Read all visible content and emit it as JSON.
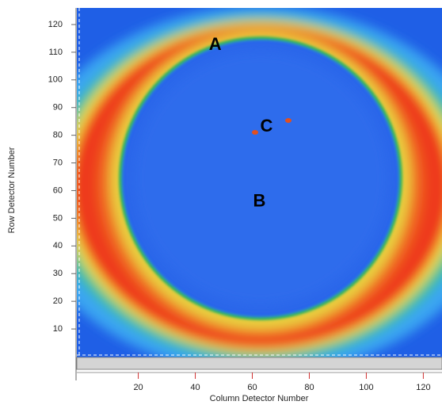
{
  "chart_data": {
    "type": "heatmap",
    "x_label": "Column Detector Number",
    "y_label": "Row Detector Number",
    "xlim": [
      -1,
      126
    ],
    "ylim": [
      0,
      126
    ],
    "xticks": [
      20,
      40,
      60,
      80,
      100,
      120
    ],
    "yticks": [
      10,
      20,
      30,
      40,
      50,
      60,
      70,
      80,
      90,
      100,
      110,
      120
    ],
    "annotations": [
      {
        "text": "A",
        "x": 47,
        "y": 112.5
      },
      {
        "text": "B",
        "x": 62.5,
        "y": 56
      },
      {
        "text": "C",
        "x": 65,
        "y": 83
      }
    ]
  }
}
